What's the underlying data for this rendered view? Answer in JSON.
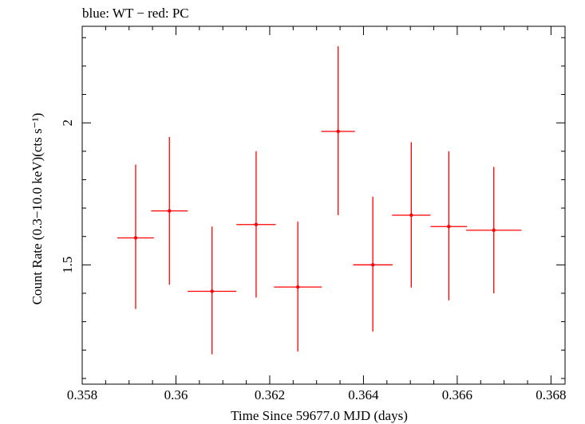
{
  "chart_data": {
    "type": "scatter",
    "title": "blue: WT − red: PC",
    "xlabel": "Time Since 59677.0 MJD (days)",
    "ylabel": "Count Rate (0.3−10.0 keV)(cts s⁻¹)",
    "xlim": [
      0.358,
      0.3683
    ],
    "ylim": [
      1.08,
      2.34
    ],
    "x_ticks": [
      0.358,
      0.36,
      0.362,
      0.364,
      0.366,
      0.368
    ],
    "x_tick_labels": [
      "0.358",
      "0.36",
      "0.362",
      "0.364",
      "0.366",
      "0.368"
    ],
    "y_ticks": [
      1.5,
      2.0
    ],
    "y_tick_labels": [
      "1.5",
      "2"
    ],
    "grid": false,
    "series": [
      {
        "color": "#ff0000",
        "points": [
          {
            "x": 0.35914,
            "xerr": 0.00039,
            "y": 1.595,
            "ylo": 1.345,
            "yhi": 1.853
          },
          {
            "x": 0.35986,
            "xerr": 0.00039,
            "y": 1.69,
            "ylo": 1.43,
            "yhi": 1.95
          },
          {
            "x": 0.36077,
            "xerr": 0.00052,
            "y": 1.407,
            "ylo": 1.185,
            "yhi": 1.635
          },
          {
            "x": 0.36171,
            "xerr": 0.00042,
            "y": 1.642,
            "ylo": 1.385,
            "yhi": 1.9
          },
          {
            "x": 0.3626,
            "xerr": 0.00051,
            "y": 1.422,
            "ylo": 1.195,
            "yhi": 1.652
          },
          {
            "x": 0.36346,
            "xerr": 0.00036,
            "y": 1.97,
            "ylo": 1.675,
            "yhi": 2.27
          },
          {
            "x": 0.3642,
            "xerr": 0.00042,
            "y": 1.5,
            "ylo": 1.265,
            "yhi": 1.74
          },
          {
            "x": 0.36502,
            "xerr": 0.00041,
            "y": 1.675,
            "ylo": 1.42,
            "yhi": 1.932
          },
          {
            "x": 0.36582,
            "xerr": 0.00039,
            "y": 1.635,
            "ylo": 1.375,
            "yhi": 1.9
          },
          {
            "x": 0.36678,
            "xerr": 0.00059,
            "y": 1.622,
            "ylo": 1.4,
            "yhi": 1.845
          }
        ]
      }
    ]
  }
}
